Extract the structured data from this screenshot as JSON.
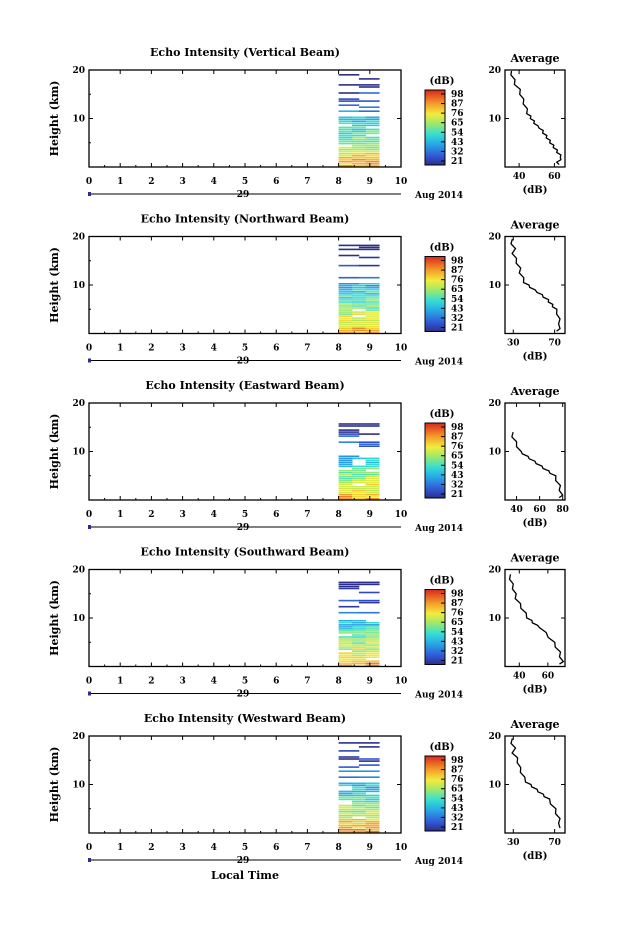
{
  "figure": {
    "xlabel": "Local Time",
    "date_label": "Aug 2014",
    "day_label": "29"
  },
  "chart_data": [
    {
      "type": "heatmap",
      "title": "Echo Intensity (Vertical Beam)",
      "ylabel": "Height (km)",
      "xlim": [
        0,
        10
      ],
      "ylim": [
        0,
        20
      ],
      "x_ticks": [
        "0",
        "1",
        "2",
        "3",
        "4",
        "5",
        "6",
        "7",
        "8",
        "9",
        "10"
      ],
      "y_ticks": [
        "10",
        "20"
      ],
      "data_x_range": [
        8.0,
        9.3
      ],
      "colorbar": {
        "label": "(dB)",
        "ticks": [
          "98",
          "87",
          "76",
          "65",
          "54",
          "43",
          "32",
          "21"
        ]
      },
      "profile": {
        "type": "line",
        "title": "Average",
        "xlabel": "(dB)",
        "x_ticks": [
          "40",
          "60"
        ],
        "xlim": [
          32,
          66
        ],
        "ylim": [
          0,
          20
        ],
        "x": [
          35,
          36,
          37,
          38,
          40,
          41,
          42,
          43,
          44,
          45,
          46,
          47,
          48,
          49,
          50,
          52,
          53,
          54,
          55,
          56,
          57,
          58,
          59,
          60,
          61,
          62,
          63,
          64,
          63,
          62,
          62
        ],
        "y": [
          19.8,
          19.0,
          18.0,
          17.0,
          16.0,
          15.0,
          14.0,
          13.0,
          12.0,
          11.0,
          10.5,
          10.0,
          9.5,
          9.0,
          8.5,
          8.0,
          7.5,
          7.0,
          6.5,
          6.0,
          5.5,
          5.0,
          4.5,
          4.0,
          3.5,
          3.0,
          2.5,
          2.0,
          1.5,
          1.0,
          0.5
        ]
      }
    },
    {
      "type": "heatmap",
      "title": "Echo Intensity (Northward Beam)",
      "ylabel": "Height (km)",
      "xlim": [
        0,
        10
      ],
      "ylim": [
        0,
        20
      ],
      "x_ticks": [
        "0",
        "1",
        "2",
        "3",
        "4",
        "5",
        "6",
        "7",
        "8",
        "9",
        "10"
      ],
      "y_ticks": [
        "10",
        "20"
      ],
      "data_x_range": [
        8.0,
        9.3
      ],
      "colorbar": {
        "label": "(dB)",
        "ticks": [
          "98",
          "87",
          "76",
          "65",
          "54",
          "43",
          "32",
          "21"
        ]
      },
      "profile": {
        "type": "line",
        "title": "Average",
        "xlabel": "(dB)",
        "x_ticks": [
          "30",
          "70"
        ],
        "xlim": [
          22,
          80
        ],
        "ylim": [
          0,
          20
        ],
        "x": [
          28,
          29,
          31,
          30,
          32,
          34,
          36,
          37,
          39,
          41,
          44,
          47,
          50,
          54,
          57,
          60,
          63,
          65,
          67,
          69,
          71,
          73,
          74,
          75,
          74,
          73
        ],
        "y": [
          19.5,
          18.5,
          17.5,
          16.5,
          15.5,
          14.5,
          13.5,
          12.5,
          11.5,
          10.5,
          10.0,
          9.5,
          9.0,
          8.5,
          8.0,
          7.5,
          7.0,
          6.5,
          6.0,
          5.5,
          5.0,
          4.0,
          3.0,
          2.0,
          1.0,
          0.5
        ]
      }
    },
    {
      "type": "heatmap",
      "title": "Echo Intensity (Eastward Beam)",
      "ylabel": "Height (km)",
      "xlim": [
        0,
        10
      ],
      "ylim": [
        0,
        20
      ],
      "x_ticks": [
        "0",
        "1",
        "2",
        "3",
        "4",
        "5",
        "6",
        "7",
        "8",
        "9",
        "10"
      ],
      "y_ticks": [
        "10",
        "20"
      ],
      "data_x_range": [
        8.0,
        9.3
      ],
      "colorbar": {
        "label": "(dB)",
        "ticks": [
          "98",
          "87",
          "76",
          "65",
          "54",
          "43",
          "32",
          "21"
        ]
      },
      "profile": {
        "type": "line",
        "title": "Average",
        "xlabel": "(dB)",
        "x_ticks": [
          "40",
          "60",
          "80"
        ],
        "xlim": [
          30,
          82
        ],
        "ylim": [
          0,
          20
        ],
        "x": [
          36,
          37,
          39,
          41,
          43,
          46,
          49,
          52,
          55,
          58,
          61,
          64,
          67,
          70,
          73,
          75,
          77,
          78,
          79,
          78
        ],
        "y": [
          14.0,
          13.0,
          12.0,
          11.0,
          10.0,
          9.5,
          9.0,
          8.5,
          8.0,
          7.5,
          7.0,
          6.5,
          6.0,
          5.5,
          5.0,
          4.0,
          3.0,
          2.0,
          1.0,
          0.5
        ]
      }
    },
    {
      "type": "heatmap",
      "title": "Echo Intensity (Southward Beam)",
      "ylabel": "Height (km)",
      "xlim": [
        0,
        10
      ],
      "ylim": [
        0,
        20
      ],
      "x_ticks": [
        "0",
        "1",
        "2",
        "3",
        "4",
        "5",
        "6",
        "7",
        "8",
        "9",
        "10"
      ],
      "y_ticks": [
        "10",
        "20"
      ],
      "data_x_range": [
        8.0,
        9.3
      ],
      "colorbar": {
        "label": "(dB)",
        "ticks": [
          "98",
          "87",
          "76",
          "65",
          "54",
          "43",
          "32",
          "21"
        ]
      },
      "profile": {
        "type": "line",
        "title": "Average",
        "xlabel": "(dB)",
        "x_ticks": [
          "40",
          "60"
        ],
        "xlim": [
          30,
          72
        ],
        "ylim": [
          0,
          20
        ],
        "x": [
          33,
          34,
          35,
          36,
          37,
          38,
          40,
          42,
          44,
          46,
          48,
          50,
          52,
          55,
          58,
          61,
          64,
          66,
          68,
          69,
          70,
          69
        ],
        "y": [
          19.0,
          18.0,
          17.0,
          16.0,
          15.0,
          14.0,
          13.0,
          12.0,
          11.0,
          10.0,
          9.5,
          9.0,
          8.5,
          8.0,
          7.0,
          6.0,
          5.0,
          4.0,
          3.0,
          2.0,
          1.0,
          0.5
        ]
      }
    },
    {
      "type": "heatmap",
      "title": "Echo Intensity (Westward Beam)",
      "ylabel": "Height (km)",
      "xlim": [
        0,
        10
      ],
      "ylim": [
        0,
        20
      ],
      "x_ticks": [
        "0",
        "1",
        "2",
        "3",
        "4",
        "5",
        "6",
        "7",
        "8",
        "9",
        "10"
      ],
      "y_ticks": [
        "10",
        "20"
      ],
      "data_x_range": [
        8.0,
        9.3
      ],
      "colorbar": {
        "label": "(dB)",
        "ticks": [
          "98",
          "87",
          "76",
          "65",
          "54",
          "43",
          "32",
          "21"
        ]
      },
      "profile": {
        "type": "line",
        "title": "Average",
        "xlabel": "(dB)",
        "x_ticks": [
          "30",
          "70"
        ],
        "xlim": [
          22,
          80
        ],
        "ylim": [
          0,
          20
        ],
        "x": [
          28,
          29,
          31,
          30,
          33,
          35,
          36,
          38,
          40,
          43,
          46,
          49,
          52,
          55,
          58,
          61,
          64,
          67,
          70,
          72,
          74,
          75,
          74
        ],
        "y": [
          19.5,
          18.5,
          17.5,
          16.5,
          15.5,
          14.5,
          13.5,
          12.5,
          11.5,
          10.5,
          10.0,
          9.5,
          9.0,
          8.5,
          8.0,
          7.5,
          7.0,
          6.0,
          5.0,
          4.0,
          3.0,
          2.0,
          1.0
        ]
      }
    }
  ]
}
